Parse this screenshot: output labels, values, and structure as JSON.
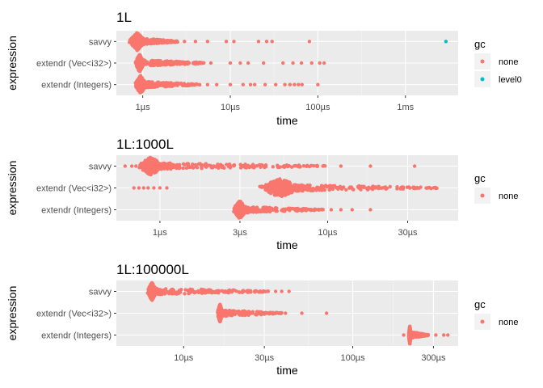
{
  "chart_data": [
    {
      "type": "scatter",
      "title": "1L",
      "xlabel": "time",
      "ylabel": "expression",
      "x_scale": "log",
      "xlim": [
        0.5,
        4000
      ],
      "x_ticks": [
        {
          "value": 1,
          "label": "1µs"
        },
        {
          "value": 10,
          "label": "10µs"
        },
        {
          "value": 100,
          "label": "100µs"
        },
        {
          "value": 1000,
          "label": "1ms"
        }
      ],
      "categories": [
        "savvy",
        "extendr (Vec<i32>)",
        "extendr (Integers)"
      ],
      "grid": true,
      "legend": {
        "title": "gc",
        "position": "right",
        "items": [
          {
            "label": "none",
            "color": "#F8766D"
          },
          {
            "label": "level0",
            "color": "#00BFC4"
          }
        ]
      },
      "series": [
        {
          "category": "savvy",
          "gc": "none",
          "dense": [
            0.75,
            1.0
          ],
          "tail_to": 2.5,
          "outliers": [
            3.0,
            4.0,
            5.5,
            9.0,
            11.0,
            21.0,
            26.0,
            30.0,
            80.0
          ]
        },
        {
          "category": "savvy",
          "gc": "level0",
          "dense": null,
          "tail_to": null,
          "outliers": [
            2900.0
          ]
        },
        {
          "category": "extendr (Vec<i32>)",
          "gc": "none",
          "dense": [
            0.85,
            1.0
          ],
          "tail_to": 5.0,
          "outliers": [
            6.0,
            10.0,
            13.0,
            16.0,
            24.0,
            40.0,
            52.0,
            65.0,
            85.0,
            105.0,
            118.0
          ]
        },
        {
          "category": "extendr (Integers)",
          "gc": "none",
          "dense": [
            0.85,
            1.05
          ],
          "tail_to": 4.5,
          "outliers": [
            5.5,
            7.0,
            10.0,
            14.0,
            17.0,
            19.0,
            25.0,
            33.0,
            42.0,
            48.0,
            54.0,
            60.0,
            66.0,
            100.0
          ]
        }
      ]
    },
    {
      "type": "scatter",
      "title": "1L:1000L",
      "xlabel": "time",
      "ylabel": "expression",
      "x_scale": "log",
      "xlim": [
        0.55,
        60
      ],
      "x_ticks": [
        {
          "value": 1,
          "label": "1µs"
        },
        {
          "value": 3,
          "label": "3µs"
        },
        {
          "value": 10,
          "label": "10µs"
        },
        {
          "value": 30,
          "label": "30µs"
        }
      ],
      "categories": [
        "savvy",
        "extendr (Vec<i32>)",
        "extendr (Integers)"
      ],
      "grid": true,
      "legend": {
        "title": "gc",
        "position": "right",
        "items": [
          {
            "label": "none",
            "color": "#F8766D"
          }
        ]
      },
      "series": [
        {
          "category": "savvy",
          "gc": "none",
          "dense": [
            0.78,
            1.0
          ],
          "tail_to": 10.0,
          "outliers": [
            0.62,
            0.68,
            0.72,
            12.0,
            18.0,
            33.0
          ]
        },
        {
          "category": "extendr (Vec<i32>)",
          "gc": "none",
          "dense": [
            4.2,
            6.5
          ],
          "tail_to": 45.0,
          "outliers": [
            0.7,
            0.75,
            0.8,
            0.85,
            0.92,
            1.0,
            1.1
          ]
        },
        {
          "category": "extendr (Integers)",
          "gc": "none",
          "dense": [
            2.8,
            3.2
          ],
          "tail_to": 9.5,
          "outliers": [
            10.5,
            12.0,
            14.0,
            18.0
          ]
        }
      ]
    },
    {
      "type": "scatter",
      "title": "1L:100000L",
      "xlabel": "time",
      "ylabel": "expression",
      "x_scale": "log",
      "xlim": [
        4,
        420
      ],
      "x_ticks": [
        {
          "value": 10,
          "label": "10µs"
        },
        {
          "value": 30,
          "label": "30µs"
        },
        {
          "value": 100,
          "label": "100µs"
        },
        {
          "value": 300,
          "label": "300µs"
        }
      ],
      "categories": [
        "savvy",
        "extendr (Vec<i32>)",
        "extendr (Integers)"
      ],
      "grid": true,
      "legend": {
        "title": "gc",
        "position": "right",
        "items": [
          {
            "label": "none",
            "color": "#F8766D"
          }
        ]
      },
      "series": [
        {
          "category": "savvy",
          "gc": "none",
          "dense": [
            6.2,
            6.8
          ],
          "tail_to": 32.0,
          "outliers": [
            35.0,
            38.0,
            42.0
          ]
        },
        {
          "category": "extendr (Vec<i32>)",
          "gc": "none",
          "dense": [
            16.0,
            16.8
          ],
          "tail_to": 38.0,
          "outliers": [
            40.0,
            50.0,
            70.0
          ]
        },
        {
          "category": "extendr (Integers)",
          "gc": "none",
          "dense": [
            215.0,
            220.0
          ],
          "tail_to": 280.0,
          "outliers": [
            200.0,
            310.0,
            345.0,
            365.0
          ]
        }
      ]
    }
  ]
}
